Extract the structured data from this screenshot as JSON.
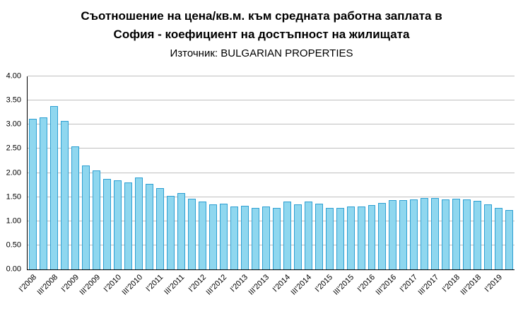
{
  "header": {
    "title_line1": "Съотношение на цена/кв.м. към средната работна заплата в",
    "title_line2": "София - коефициент на достъпност на жилищата",
    "source_line": "Източник: BULGARIAN PROPERTIES"
  },
  "chart_data": {
    "type": "bar",
    "title": "Съотношение на цена/кв.м. към средната работна заплата в София - коефициент на достъпност на жилищата",
    "subtitle": "Източник: BULGARIAN PROPERTIES",
    "xlabel": "",
    "ylabel": "",
    "ylim": [
      0,
      4
    ],
    "yticks": [
      0,
      0.5,
      1,
      1.5,
      2,
      2.5,
      3,
      3.5,
      4
    ],
    "ytick_labels": [
      "0.00",
      "0.50",
      "1.00",
      "1.50",
      "2.00",
      "2.50",
      "3.00",
      "3.50",
      "4.00"
    ],
    "grid": "horizontal",
    "legend": "none",
    "x_tick_every": 2,
    "bar_fill": "#8FD7EF",
    "bar_border": "#2D9FD2",
    "categories": [
      "I'2008",
      "II'2008",
      "III'2008",
      "IV'2008",
      "I'2009",
      "II'2009",
      "III'2009",
      "IV'2009",
      "I'2010",
      "II'2010",
      "III'2010",
      "IV'2010",
      "I'2011",
      "II'2011",
      "III'2011",
      "IV'2011",
      "I'2012",
      "II'2012",
      "III'2012",
      "IV'2012",
      "I'2013",
      "II'2013",
      "III'2013",
      "IV'2013",
      "I'2014",
      "II'2014",
      "III'2014",
      "IV'2014",
      "I'2015",
      "II'2015",
      "III'2015",
      "IV'2015",
      "I'2016",
      "II'2016",
      "III'2016",
      "IV'2016",
      "I'2017",
      "II'2017",
      "III'2017",
      "IV'2017",
      "I'2018",
      "II'2018",
      "III'2018",
      "IV'2018",
      "I'2019",
      "II'2019"
    ],
    "values": [
      3.12,
      3.15,
      3.38,
      3.08,
      2.55,
      2.15,
      2.05,
      1.88,
      1.85,
      1.8,
      1.9,
      1.78,
      1.68,
      1.53,
      1.58,
      1.47,
      1.4,
      1.35,
      1.37,
      1.3,
      1.32,
      1.27,
      1.3,
      1.27,
      1.4,
      1.35,
      1.4,
      1.37,
      1.28,
      1.28,
      1.3,
      1.3,
      1.33,
      1.38,
      1.43,
      1.43,
      1.45,
      1.48,
      1.48,
      1.45,
      1.47,
      1.45,
      1.42,
      1.35,
      1.28,
      1.23
    ]
  }
}
